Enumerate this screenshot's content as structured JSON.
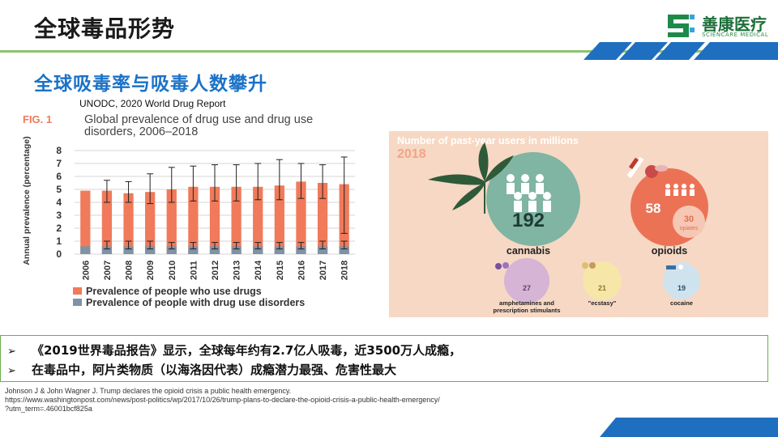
{
  "slide": {
    "title": "全球毒品形势",
    "subtitle": "全球吸毒率与吸毒人数攀升",
    "source": "UNODC, 2020 World Drug Report",
    "logo": {
      "name_cn": "善康医疗",
      "name_en": "SCIENCARE MEDICAL",
      "icon": "sciencare-logo-icon"
    },
    "notes": [
      "《2019世界毒品报告》显示，全球每年约有2.7亿人吸毒，近3500万人成瘾，",
      "在毒品中，阿片类物质（以海洛因代表）成瘾潜力最强、危害性最大"
    ],
    "note_marker": "➢",
    "reference": [
      "Johnson J & John Wagner J. Trump declares the opioid crisis a public health emergency.",
      " https://www.washingtonpost.com/news/post-politics/wp/2017/10/26/trump-plans-to-declare-the-opioid-crisis-a-public-health-emergency/",
      "?utm_term=.46001bcf825a"
    ],
    "colors": {
      "title_blue": "#1b72c7",
      "accent_green": "#8dc26f",
      "stripe_blue": "#1f6fc0"
    }
  },
  "chart_data": [
    {
      "type": "bar",
      "fig_label": "FIG. 1",
      "title": "Global prevalence of drug use and drug use disorders, 2006–2018",
      "ylabel": "Annual prevalence (percentage)",
      "ylim": [
        0,
        8
      ],
      "yticks": [
        0,
        1,
        2,
        3,
        4,
        5,
        6,
        7,
        8
      ],
      "grid": true,
      "categories": [
        "2006",
        "2007",
        "2008",
        "2009",
        "2010",
        "2011",
        "2012",
        "2013",
        "2014",
        "2015",
        "2016",
        "2017",
        "2018"
      ],
      "series": [
        {
          "name": "Prevalence of people who use drugs",
          "color": "#f07a5a",
          "values": [
            4.9,
            4.9,
            4.7,
            4.8,
            5.0,
            5.2,
            5.2,
            5.2,
            5.2,
            5.3,
            5.6,
            5.5,
            5.4
          ],
          "error_low": [
            null,
            4.0,
            4.0,
            3.9,
            4.0,
            4.1,
            4.1,
            4.1,
            4.2,
            4.2,
            4.3,
            4.3,
            1.6
          ],
          "error_high": [
            null,
            5.7,
            5.6,
            6.2,
            6.7,
            6.8,
            6.9,
            6.9,
            7.0,
            7.3,
            7.0,
            6.9,
            7.5
          ]
        },
        {
          "name": "Prevalence of people with drug use disorders",
          "color": "#7f93a6",
          "values": [
            0.6,
            0.6,
            0.6,
            0.6,
            0.6,
            0.6,
            0.6,
            0.6,
            0.6,
            0.6,
            0.6,
            0.6,
            0.6
          ],
          "error_low": [
            null,
            0.4,
            0.4,
            0.4,
            0.4,
            0.4,
            0.4,
            0.4,
            0.4,
            0.4,
            0.4,
            0.4,
            0.4
          ],
          "error_high": [
            null,
            1.0,
            1.0,
            1.0,
            0.9,
            0.9,
            0.9,
            0.9,
            0.9,
            0.9,
            0.9,
            1.0,
            1.0
          ]
        }
      ],
      "legend": "bottom"
    },
    {
      "type": "bubble",
      "title": "Number of past-year users in millions",
      "year": "2018",
      "unit": "millions",
      "items": [
        {
          "label": "cannabis",
          "value": 192,
          "color": "#7fb5a2"
        },
        {
          "label": "opioids",
          "value": 58,
          "sub_value": 30,
          "sub_label": "opiates",
          "color": "#ec7256"
        },
        {
          "label": "amphetamines and prescription stimulants",
          "value": 27,
          "color": "#d6b4d6"
        },
        {
          "label": "\"ecstasy\"",
          "value": 21,
          "color": "#f6e7a8"
        },
        {
          "label": "cocaine",
          "value": 19,
          "color": "#cfe3ef"
        }
      ]
    }
  ]
}
